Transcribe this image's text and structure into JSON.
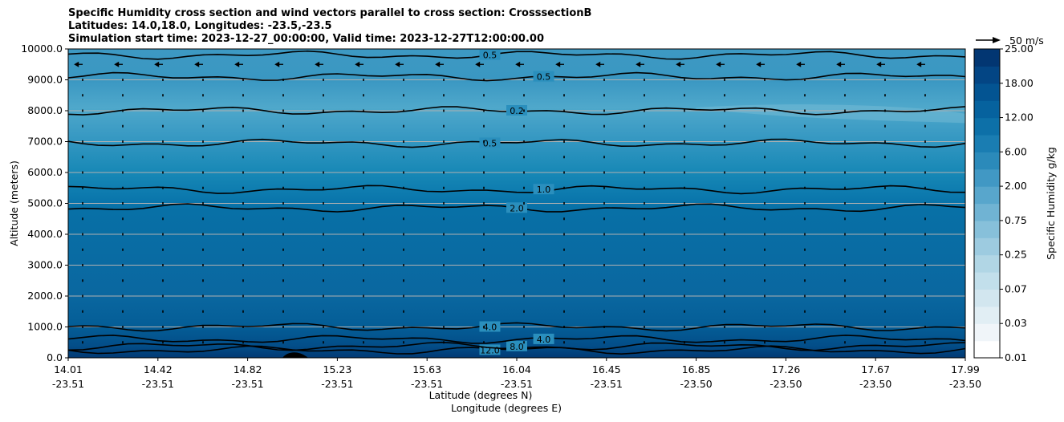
{
  "title_lines": [
    "Specific Humidity cross section and wind vectors parallel to cross section: CrosssectionB",
    "Latitudes: 14.0,18.0, Longitudes: -23.5,-23.5",
    "Simulation start time: 2023-12-27_00:00:00, Valid time: 2023-12-27T12:00:00.00"
  ],
  "chart_data": {
    "type": "heatmap",
    "title": "Specific Humidity cross section and wind vectors parallel to cross section: CrosssectionB",
    "ylabel": "Altitude (meters)",
    "xlabel_lat": "Latitude (degrees N)",
    "xlabel_lon": "Longitude (degrees E)",
    "ylim": [
      0,
      10000
    ],
    "yticks": [
      "0.0",
      "1000.0",
      "2000.0",
      "3000.0",
      "4000.0",
      "5000.0",
      "6000.0",
      "7000.0",
      "8000.0",
      "9000.0",
      "10000.0"
    ],
    "xticks": [
      {
        "lat": "14.01",
        "lon": "-23.51"
      },
      {
        "lat": "14.42",
        "lon": "-23.51"
      },
      {
        "lat": "14.82",
        "lon": "-23.51"
      },
      {
        "lat": "15.23",
        "lon": "-23.51"
      },
      {
        "lat": "15.63",
        "lon": "-23.51"
      },
      {
        "lat": "16.04",
        "lon": "-23.51"
      },
      {
        "lat": "16.45",
        "lon": "-23.51"
      },
      {
        "lat": "16.85",
        "lon": "-23.50"
      },
      {
        "lat": "17.26",
        "lon": "-23.50"
      },
      {
        "lat": "17.67",
        "lon": "-23.50"
      },
      {
        "lat": "17.99",
        "lon": "-23.50"
      }
    ],
    "colorbar": {
      "label": "Specific Humidity g/kg",
      "ticks": [
        "0.01",
        "0.03",
        "0.07",
        "0.25",
        "0.75",
        "2.00",
        "6.00",
        "12.00",
        "18.00",
        "25.00"
      ],
      "colormap": "PuBu"
    },
    "quiver_key": "50 m/s",
    "grid": "horizontal",
    "contour_levels": [
      {
        "value": 12.0,
        "altitude_m": 250,
        "label": "12.0"
      },
      {
        "value": 8.0,
        "altitude_m": 370,
        "label": "8.0"
      },
      {
        "value": 4.0,
        "altitude_m": 600,
        "label": "4.0"
      },
      {
        "value": 4.0,
        "altitude_m": 1000,
        "label": "4.0"
      },
      {
        "value": 2.0,
        "altitude_m": 4850,
        "label": "2.0"
      },
      {
        "value": 1.0,
        "altitude_m": 5450,
        "label": "1.0"
      },
      {
        "value": 0.5,
        "altitude_m": 6950,
        "label": "0.5"
      },
      {
        "value": 0.2,
        "altitude_m": 8000,
        "label": "0.2"
      },
      {
        "value": 0.5,
        "altitude_m": 9100,
        "label": "0.5"
      },
      {
        "value": 0.5,
        "altitude_m": 9800,
        "label": "0.5"
      }
    ],
    "wind_profile": [
      {
        "altitude_m": 9500,
        "u_ms": -8
      },
      {
        "altitude_m": 9000,
        "u_ms": -2
      },
      {
        "altitude_m": 8500,
        "u_ms": -1
      },
      {
        "altitude_m": 8000,
        "u_ms": -0.5
      },
      {
        "altitude_m": 7500,
        "u_ms": -0.5
      },
      {
        "altitude_m": 7000,
        "u_ms": -0.5
      },
      {
        "altitude_m": 6500,
        "u_ms": -0.5
      },
      {
        "altitude_m": 6000,
        "u_ms": -0.5
      },
      {
        "altitude_m": 5500,
        "u_ms": -0.5
      },
      {
        "altitude_m": 5000,
        "u_ms": -0.5
      },
      {
        "altitude_m": 4500,
        "u_ms": -0.3
      },
      {
        "altitude_m": 4000,
        "u_ms": -0.3
      },
      {
        "altitude_m": 3500,
        "u_ms": -0.3
      },
      {
        "altitude_m": 3000,
        "u_ms": -0.3
      },
      {
        "altitude_m": 2500,
        "u_ms": -0.3
      },
      {
        "altitude_m": 2000,
        "u_ms": -0.3
      },
      {
        "altitude_m": 1500,
        "u_ms": -0.3
      },
      {
        "altitude_m": 1000,
        "u_ms": -0.3
      },
      {
        "altitude_m": 500,
        "u_ms": -0.3
      }
    ]
  }
}
